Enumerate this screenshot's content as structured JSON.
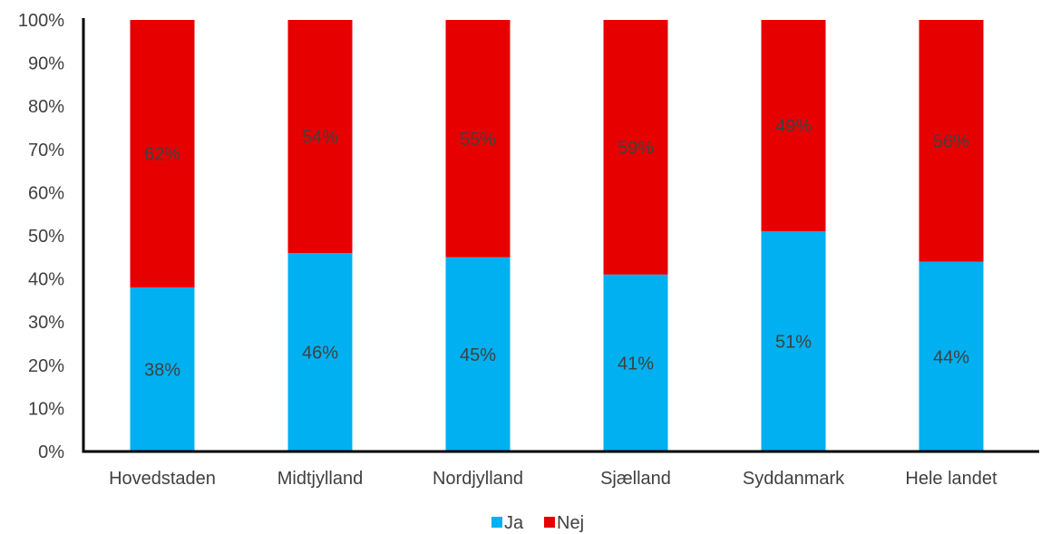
{
  "chart_data": {
    "type": "bar",
    "stacked": true,
    "categories": [
      "Hovedstaden",
      "Midtjylland",
      "Nordjylland",
      "Sjælland",
      "Syddanmark",
      "Hele landet"
    ],
    "series": [
      {
        "name": "Ja",
        "color": "#00B0F0",
        "values": [
          38,
          46,
          45,
          41,
          51,
          44
        ],
        "labels": [
          "38%",
          "46%",
          "45%",
          "41%",
          "51%",
          "44%"
        ]
      },
      {
        "name": "Nej",
        "color": "#E60000",
        "values": [
          62,
          54,
          55,
          59,
          49,
          56
        ],
        "labels": [
          "62%",
          "54%",
          "55%",
          "59%",
          "49%",
          "56%"
        ]
      }
    ],
    "y_ticks": [
      "0%",
      "10%",
      "20%",
      "30%",
      "40%",
      "50%",
      "60%",
      "70%",
      "80%",
      "90%",
      "100%"
    ],
    "ylim": [
      0,
      100
    ],
    "grid": false,
    "legend": "bottom-center"
  }
}
